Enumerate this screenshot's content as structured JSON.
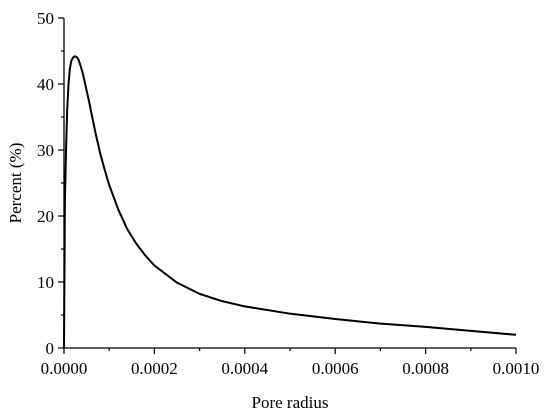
{
  "chart_data": {
    "type": "line",
    "title": "",
    "xlabel": "Pore radius",
    "ylabel": "Percent (%)",
    "xlim": [
      0,
      0.001
    ],
    "ylim": [
      0,
      50
    ],
    "xticks": [
      0,
      0.0002,
      0.0004,
      0.0006,
      0.0008,
      0.001
    ],
    "xtick_labels": [
      "0.0000",
      "0.0002",
      "0.0004",
      "0.0006",
      "0.0008",
      "0.0010"
    ],
    "yticks": [
      0,
      10,
      20,
      30,
      40,
      50
    ],
    "ytick_labels": [
      "0",
      "10",
      "20",
      "30",
      "40",
      "50"
    ],
    "grid": false,
    "legend": "none",
    "series": [
      {
        "color": "#000000",
        "x": [
          0.0,
          2e-06,
          4.5e-06,
          7e-06,
          1e-05,
          1.3e-05,
          1.6e-05,
          2e-05,
          2.4e-05,
          2.8e-05,
          3.2e-05,
          3.6e-05,
          4e-05,
          4.5e-05,
          5e-05,
          5.5e-05,
          6e-05,
          7e-05,
          8e-05,
          9e-05,
          0.0001,
          0.00012,
          0.00014,
          0.00016,
          0.00018,
          0.0002,
          0.00025,
          0.0003,
          0.00035,
          0.0004,
          0.0005,
          0.0006,
          0.0007,
          0.0008,
          0.0009,
          0.001
        ],
        "y": [
          0.0,
          22.0,
          30.0,
          36.0,
          40.0,
          42.3,
          43.5,
          44.0,
          44.2,
          44.1,
          43.7,
          42.9,
          42.0,
          40.6,
          39.0,
          37.5,
          35.8,
          32.5,
          29.5,
          27.0,
          24.7,
          21.0,
          18.0,
          15.8,
          14.0,
          12.5,
          9.9,
          8.2,
          7.1,
          6.3,
          5.2,
          4.4,
          3.7,
          3.2,
          2.6,
          2.0
        ]
      }
    ]
  }
}
